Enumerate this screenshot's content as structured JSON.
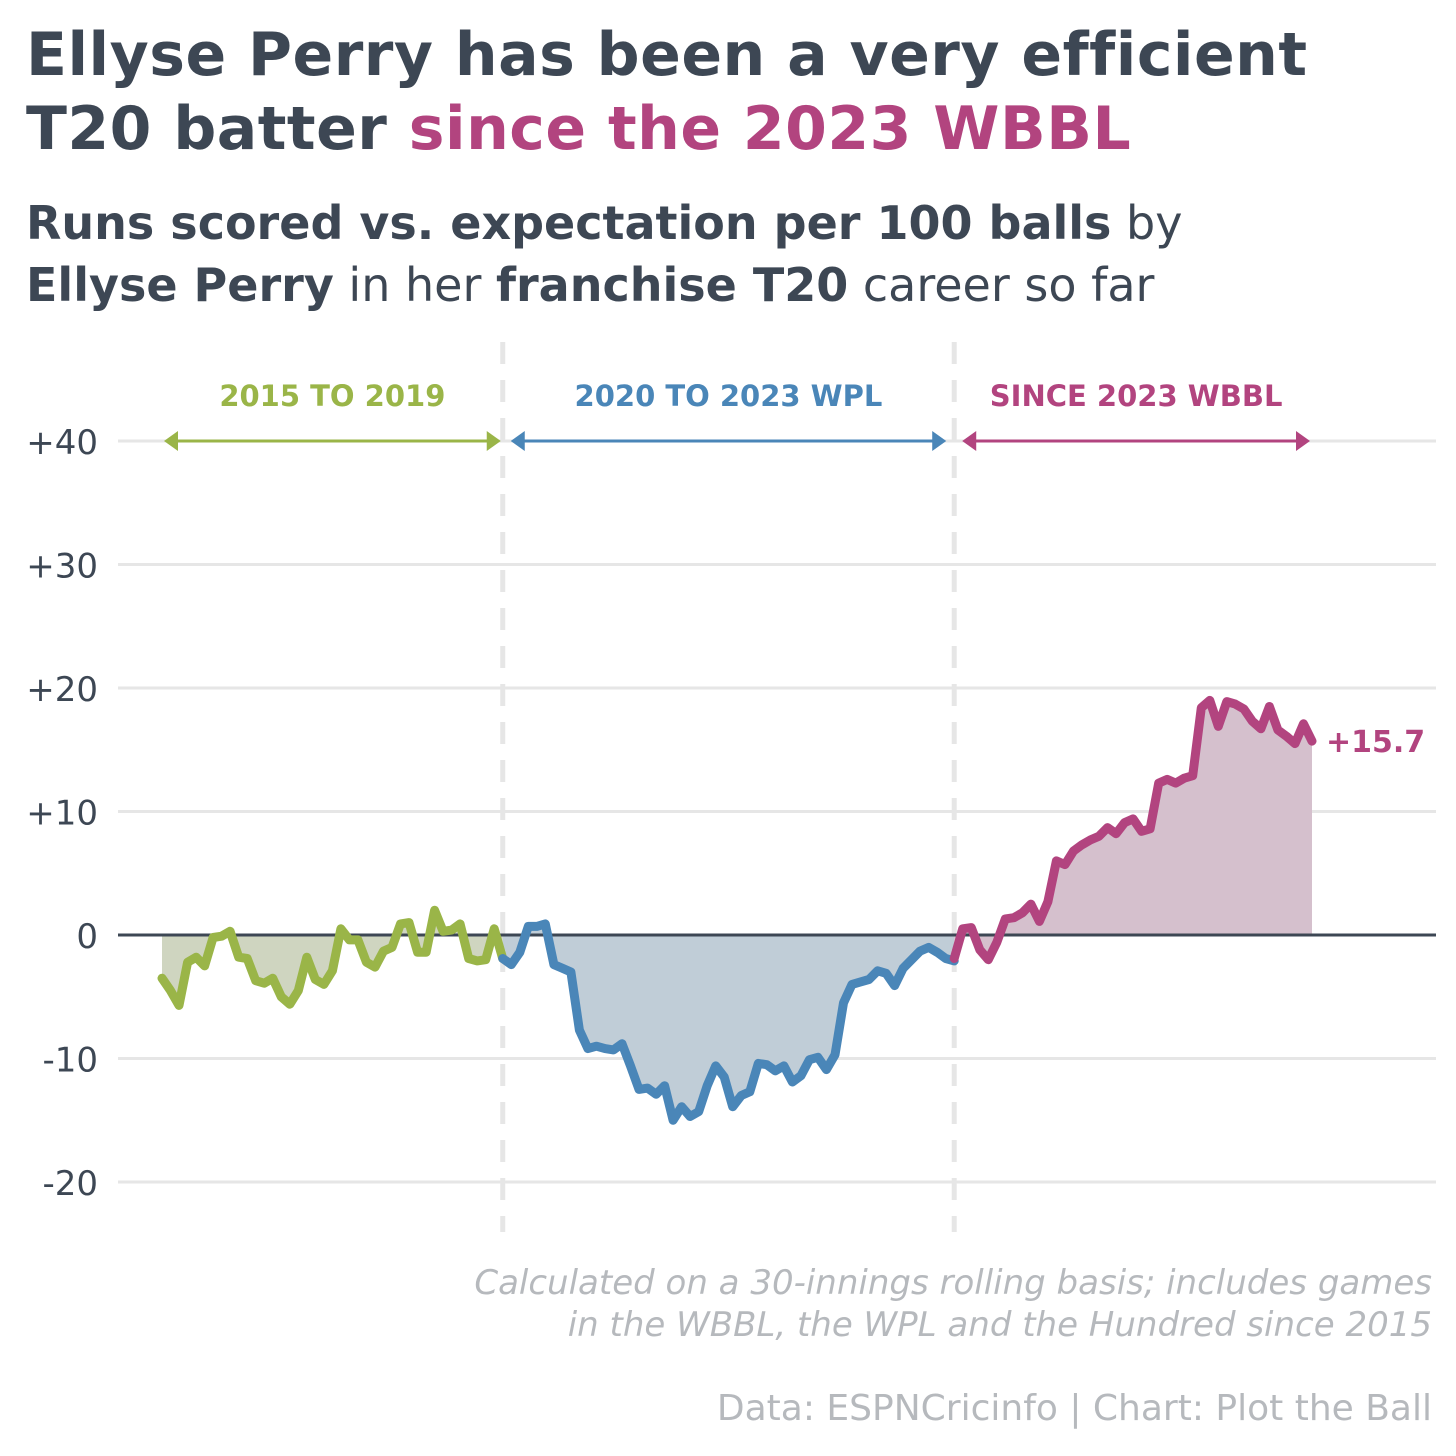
{
  "header": {
    "title_line1": "Ellyse Perry has been a very efficient",
    "title_line2_a": "T20 batter ",
    "title_line2_b": "since the 2023 WBBL",
    "subtitle_l1_bold": "Runs scored vs. expectation per 100 balls",
    "subtitle_l1_reg": " by",
    "subtitle_l2_bold_a": "Ellyse Perry",
    "subtitle_l2_reg_a": " in her ",
    "subtitle_l2_bold_b": "franchise T20",
    "subtitle_l2_reg_b": " career so far"
  },
  "colors": {
    "text": "#3d4754",
    "accent": "#b2447f",
    "era1": "#9ab548",
    "era2": "#4a86b8",
    "era3": "#b2447f",
    "fill1": "#cfd5c0",
    "fill2": "#c0cdd7",
    "fill3": "#d5c0cd",
    "grid": "#e6e6e6",
    "zero": "#3d4754",
    "muted": "#b6b9bd"
  },
  "chart_data": {
    "type": "area",
    "ylim": [
      -20,
      40
    ],
    "yticks": [
      -20,
      -10,
      0,
      10,
      20,
      30,
      40
    ],
    "ytick_labels": [
      "-20",
      "-10",
      "0",
      "+10",
      "+20",
      "+30",
      "+40"
    ],
    "grid": true,
    "end_label": "+15.7",
    "periods": [
      {
        "name": "2015 TO 2019",
        "values": [
          -3.5,
          -4.5,
          -5.7,
          -2.2,
          -1.8,
          -2.5,
          -0.2,
          -0.1,
          0.3,
          -1.8,
          -1.9,
          -3.7,
          -3.9,
          -3.5,
          -5.0,
          -5.6,
          -4.5,
          -1.8,
          -3.6,
          -4.0,
          -2.9,
          0.5,
          -0.4,
          -0.4,
          -2.2,
          -2.6,
          -1.3,
          -1.0,
          0.9,
          1.0,
          -1.4,
          -1.4,
          2.0,
          0.3,
          0.4,
          0.9,
          -1.9,
          -2.1,
          -2.0,
          0.5,
          -1.9
        ]
      },
      {
        "name": "2020 TO 2023 WPL",
        "values": [
          -1.9,
          -2.4,
          -1.4,
          0.7,
          0.7,
          0.9,
          -2.4,
          -2.7,
          -3.0,
          -7.7,
          -9.2,
          -9.0,
          -9.2,
          -9.3,
          -8.8,
          -10.6,
          -12.5,
          -12.4,
          -12.9,
          -12.2,
          -15.0,
          -13.9,
          -14.7,
          -14.3,
          -12.2,
          -10.6,
          -11.5,
          -13.9,
          -13.0,
          -12.7,
          -10.4,
          -10.5,
          -11.0,
          -10.6,
          -11.9,
          -11.4,
          -10.1,
          -9.9,
          -10.9,
          -9.7,
          -5.5,
          -4.0,
          -3.8,
          -3.6,
          -2.9,
          -3.1,
          -4.1,
          -2.7,
          -2.0,
          -1.3,
          -1.0,
          -1.4,
          -1.9,
          -2.1
        ]
      },
      {
        "name": "SINCE 2023 WBBL",
        "values": [
          -1.9,
          0.5,
          0.6,
          -1.2,
          -2.0,
          -0.6,
          1.3,
          1.4,
          1.8,
          2.5,
          1.1,
          2.7,
          6.0,
          5.7,
          6.8,
          7.3,
          7.7,
          8.0,
          8.7,
          8.2,
          9.1,
          9.4,
          8.4,
          8.6,
          12.3,
          12.6,
          12.3,
          12.7,
          12.9,
          18.4,
          19.0,
          16.9,
          18.9,
          18.7,
          18.3,
          17.3,
          16.7,
          18.5,
          16.6,
          16.1,
          15.5,
          17.1,
          15.7
        ]
      }
    ]
  },
  "footer": {
    "note_line1": "Calculated on a 30-innings rolling basis; includes games",
    "note_line2": "in the WBBL, the WPL and the Hundred since 2015",
    "source": "Data: ESPNCricinfo | Chart: Plot the Ball"
  }
}
